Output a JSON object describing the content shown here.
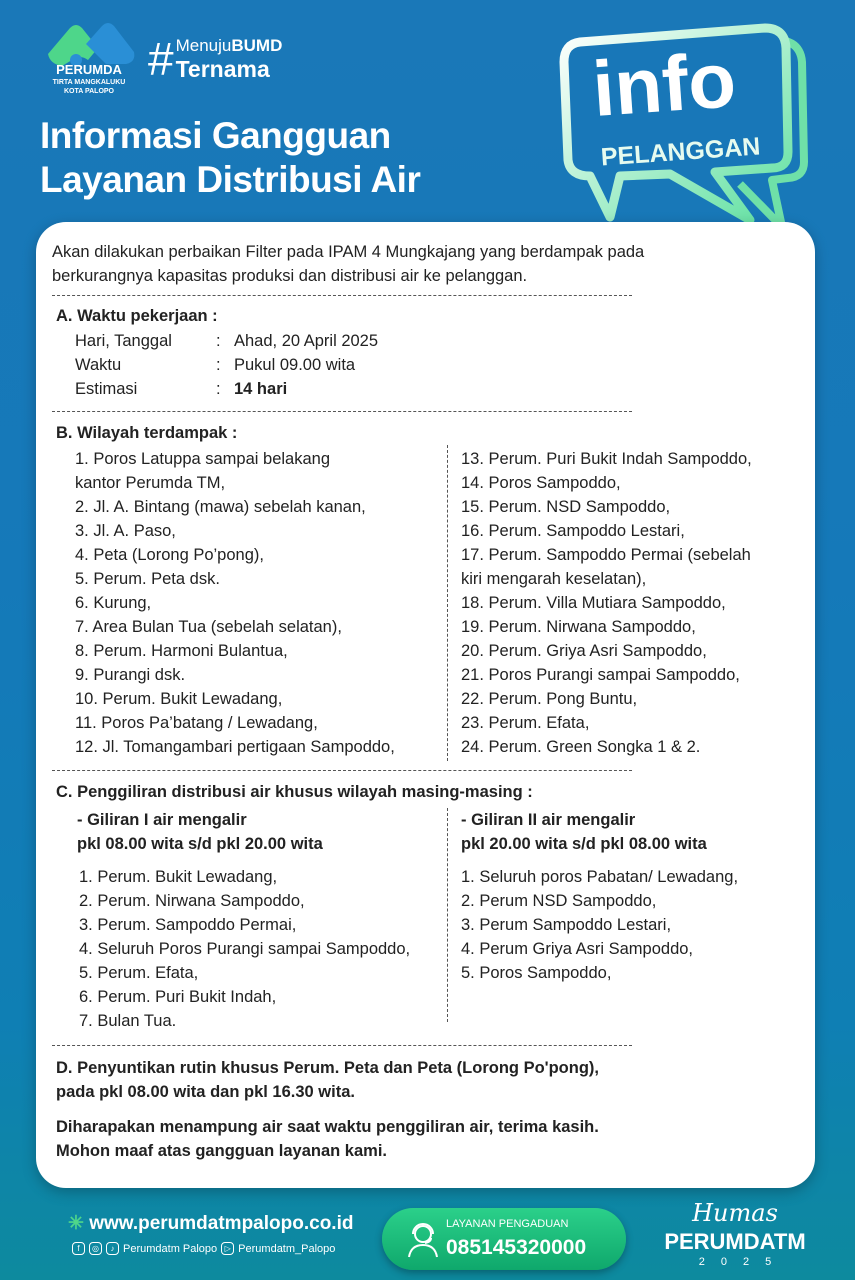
{
  "colors": {
    "accent": "#1a78b8",
    "green": "#1fbf7c",
    "text": "#222222"
  },
  "header": {
    "logo_name": "PERUMDA",
    "logo_sub1": "TIRTA MANGKALUKU",
    "logo_sub2": "KOTA PALOPO",
    "hashtag_symbol": "#",
    "hashtag_light": "Menuju",
    "hashtag_bold": "BUMD",
    "hashtag_line2": "Ternama",
    "title_line1": "Informasi Gangguan",
    "title_line2": "Layanan Distribusi Air",
    "bubble_big": "info",
    "bubble_small": "PELANGGAN"
  },
  "intro": [
    "Akan dilakukan perbaikan Filter pada IPAM 4 Mungkajang yang berdampak pada",
    "berkurangnya kapasitas produksi dan distribusi air ke pelanggan."
  ],
  "section_a": {
    "heading": "A. Waktu pekerjaan :",
    "rows": [
      {
        "label": "Hari, Tanggal",
        "value": "Ahad, 20 April 2025"
      },
      {
        "label": "Waktu",
        "value": "Pukul 09.00 wita"
      },
      {
        "label": "Estimasi",
        "value": "14 hari"
      }
    ]
  },
  "section_b": {
    "heading": "B. Wilayah terdampak :",
    "left": [
      "1. Poros Latuppa sampai belakang",
      "    kantor Perumda TM,",
      "2. Jl. A. Bintang (mawa) sebelah kanan,",
      "3.  Jl. A. Paso,",
      "4. Peta (Lorong Po’pong),",
      "5. Perum. Peta dsk.",
      "6. Kurung,",
      "7. Area Bulan Tua (sebelah selatan),",
      "8. Perum. Harmoni Bulantua,",
      "9. Purangi dsk.",
      "10. Perum. Bukit Lewadang,",
      "11. Poros Pa’batang / Lewadang,",
      "12. Jl. Tomangambari pertigaan Sampoddo,"
    ],
    "right": [
      "13. Perum. Puri Bukit Indah Sampoddo,",
      "14. Poros Sampoddo,",
      "15. Perum. NSD Sampoddo,",
      "16. Perum. Sampoddo Lestari,",
      "17. Perum. Sampoddo Permai (sebelah",
      "      kiri mengarah keselatan),",
      "18. Perum. Villa Mutiara Sampoddo,",
      "19. Perum. Nirwana Sampoddo,",
      "20. Perum. Griya Asri Sampoddo,",
      "21. Poros Purangi sampai Sampoddo,",
      "22. Perum. Pong Buntu,",
      "23. Perum. Efata,",
      "24. Perum. Green Songka 1 & 2."
    ]
  },
  "section_c": {
    "heading": "C. Penggiliran distribusi air khusus wilayah masing-masing :",
    "left_title": [
      "- Giliran I air mengalir",
      "   pkl 08.00 wita s/d pkl 20.00 wita"
    ],
    "left": [
      "1. Perum. Bukit Lewadang,",
      "2. Perum. Nirwana Sampoddo,",
      "3. Perum. Sampoddo Permai,",
      "4. Seluruh Poros Purangi sampai Sampoddo,",
      "5. Perum. Efata,",
      "6. Perum. Puri Bukit Indah,",
      "7. Bulan Tua."
    ],
    "right_title": [
      "- Giliran II air mengalir",
      "   pkl 20.00 wita s/d pkl 08.00 wita"
    ],
    "right": [
      "1. Seluruh poros Pabatan/ Lewadang,",
      "2. Perum NSD Sampoddo,",
      "3. Perum Sampoddo Lestari,",
      "4. Perum Griya Asri Sampoddo,",
      "5. Poros Sampoddo,"
    ]
  },
  "section_d": {
    "lines": [
      "D. Penyuntikan rutin khusus Perum. Peta dan Peta (Lorong Po'pong),",
      "     pada pkl 08.00 wita dan pkl 16.30 wita."
    ]
  },
  "closing": [
    "Diharapakan menampung air saat waktu penggiliran air, terima kasih.",
    "Mohon maaf atas gangguan layanan kami."
  ],
  "footer": {
    "website": "www.perumdatmpalopo.co.id",
    "social1": "Perumdatm Palopo",
    "social2": "Perumdatm_Palopo",
    "complaint_label": "LAYANAN PENGADUAN",
    "complaint_number": "085145320000",
    "humas_script": "Humas",
    "humas_name": "PERUMDATM",
    "humas_year": "2025"
  }
}
